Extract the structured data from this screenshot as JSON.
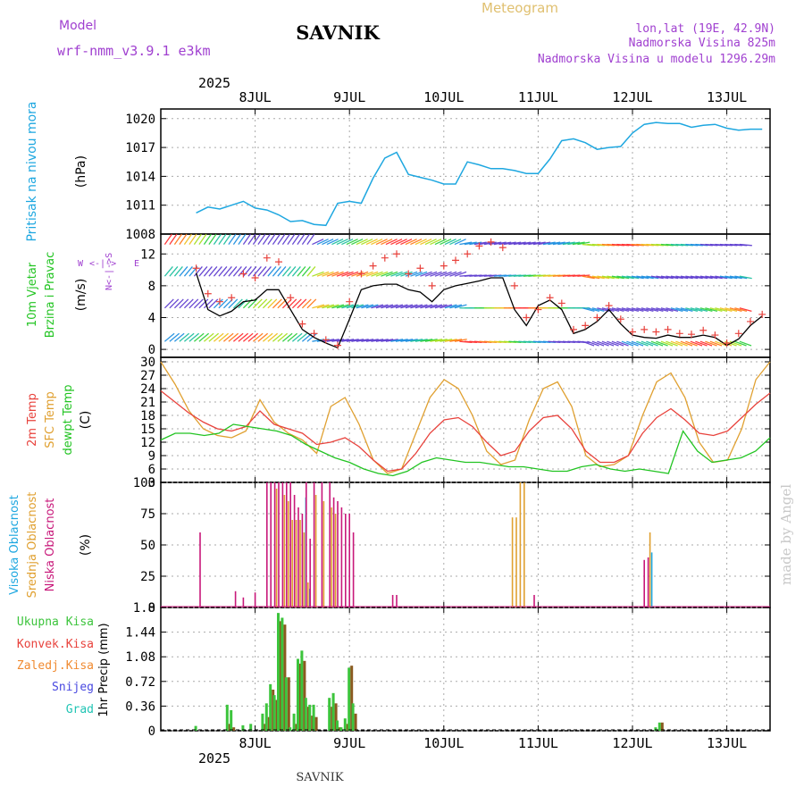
{
  "header": {
    "meteogram_label": "Meteogram",
    "model_label": "Model",
    "model_name": "wrf-nmm_v3.9.1 e3km",
    "station": "SAVNIK",
    "lonlat": "lon,lat (19E, 42.9N)",
    "elevation": "Nadmorska Visina 825m",
    "model_elevation": "Nadmorska Visina u modelu 1296.29m",
    "year": "2025",
    "credit": "made by Angel",
    "footer_station": "SAVNIK"
  },
  "colors": {
    "pressure": "#1ea7e0",
    "wind": "#000000",
    "gust": "#e8423c",
    "temp2m": "#e8423c",
    "sfc": "#e0a030",
    "dewpoint": "#22c422",
    "high_cloud": "#1ea7e0",
    "mid_cloud": "#e0a030",
    "low_cloud": "#c8187a",
    "precip_total": "#3cc43c",
    "precip_conv": "#e8423c",
    "precip_frz": "#f08a30",
    "snow": "#4848e0",
    "hail": "#20c4b4",
    "purple_label": "#a040d0"
  },
  "chart_data": [
    {
      "type": "line",
      "panel": "pressure",
      "ylabel": "Pritisak na nivou mora",
      "yunit": "(hPa)",
      "ylim": [
        1008,
        1021
      ],
      "yticks": [
        1008,
        1011,
        1014,
        1017,
        1020
      ],
      "xticks_top": [
        "8JUL",
        "9JUL",
        "10JUL",
        "11JUL",
        "12JUL",
        "13JUL"
      ],
      "x_hours": [
        0,
        3,
        6,
        9,
        12,
        15,
        18,
        21,
        24,
        27,
        30,
        33,
        36,
        39,
        42,
        45,
        48,
        51,
        54,
        57,
        60,
        63,
        66,
        69,
        72,
        75,
        78,
        81,
        84,
        87,
        90,
        93,
        96,
        99,
        102,
        105,
        108,
        111,
        114,
        117,
        120,
        123,
        126,
        129,
        132,
        135,
        138,
        141,
        144
      ],
      "series": [
        {
          "name": "Pritisak na nivou mora",
          "values": [
            1010.2,
            1010.8,
            1010.6,
            1011.0,
            1011.4,
            1010.7,
            1010.5,
            1010.0,
            1009.3,
            1009.4,
            1009.0,
            1008.9,
            1011.2,
            1011.4,
            1011.2,
            1013.8,
            1015.9,
            1016.5,
            1014.2,
            1013.9,
            1013.6,
            1013.2,
            1013.2,
            1015.5,
            1015.2,
            1014.8,
            1014.8,
            1014.6,
            1014.3,
            1014.3,
            1015.8,
            1017.7,
            1017.9,
            1017.5,
            1016.8,
            1017.0,
            1017.1,
            1018.5,
            1019.4,
            1019.6,
            1019.5,
            1019.5,
            1019.1,
            1019.3,
            1019.4,
            1019.0,
            1018.8,
            1018.9,
            1018.9
          ]
        }
      ]
    },
    {
      "type": "line",
      "panel": "wind",
      "ylabel": "10m Vjetar Brzina i Pravac",
      "yunit": "(m/s)",
      "compass": "N <-|-> S, W <-|-> E",
      "ylim": [
        -1,
        14.5
      ],
      "yticks": [
        0,
        4,
        8,
        12
      ],
      "x_hours": [
        0,
        3,
        6,
        9,
        12,
        15,
        18,
        21,
        24,
        27,
        30,
        33,
        36,
        39,
        42,
        45,
        48,
        51,
        54,
        57,
        60,
        63,
        66,
        69,
        72,
        75,
        78,
        81,
        84,
        87,
        90,
        93,
        96,
        99,
        102,
        105,
        108,
        111,
        114,
        117,
        120,
        123,
        126,
        129,
        132,
        135,
        138,
        141,
        144
      ],
      "series": [
        {
          "name": "Brzina vjetra",
          "values": [
            9.6,
            5.0,
            4.2,
            4.8,
            6.0,
            6.2,
            7.5,
            7.5,
            5.0,
            2.5,
            1.5,
            0.8,
            0.2,
            3.8,
            7.5,
            8.0,
            8.2,
            8.2,
            7.5,
            7.2,
            6.0,
            7.5,
            8.0,
            8.3,
            8.6,
            9.0,
            9.0,
            5.0,
            3.0,
            5.5,
            6.2,
            5.0,
            2.0,
            2.5,
            3.5,
            5.0,
            3.2,
            1.8,
            1.5,
            1.4,
            1.8,
            1.5,
            1.5,
            1.8,
            1.5,
            0.5,
            1.3,
            3.0,
            4.2
          ]
        },
        {
          "name": "Udari vjetra",
          "values": [
            10.2,
            7.0,
            6.0,
            6.5,
            9.5,
            9.0,
            11.5,
            11.0,
            6.5,
            3.2,
            2.0,
            1.2,
            0.5,
            6.0,
            9.5,
            10.5,
            11.5,
            12.0,
            9.5,
            10.2,
            8.0,
            10.5,
            11.2,
            12.0,
            13.0,
            13.5,
            12.8,
            8.0,
            4.0,
            5.0,
            6.5,
            5.8,
            2.5,
            3.0,
            4.0,
            5.5,
            3.8,
            2.2,
            2.5,
            2.2,
            2.5,
            2.0,
            1.9,
            2.4,
            1.8,
            0.8,
            2.0,
            3.5,
            4.4
          ]
        }
      ]
    },
    {
      "type": "line",
      "panel": "temperature",
      "ylabel": "2m Temp / SFC Temp / dewpt Temp",
      "yunit": "(C)",
      "ylim": [
        3,
        31
      ],
      "yticks": [
        3,
        6,
        9,
        12,
        15,
        18,
        21,
        24,
        27,
        30
      ],
      "x_hours": [
        0,
        3,
        6,
        9,
        12,
        15,
        18,
        21,
        24,
        27,
        30,
        33,
        36,
        39,
        42,
        45,
        48,
        51,
        54,
        57,
        60,
        63,
        66,
        69,
        72,
        75,
        78,
        81,
        84,
        87,
        90,
        93,
        96,
        99,
        102,
        105,
        108,
        111,
        114,
        117,
        120,
        123,
        126,
        129,
        132,
        135,
        138,
        141,
        144
      ],
      "series": [
        {
          "name": "2m Temp",
          "values": [
            23.5,
            21.0,
            18.5,
            16.5,
            15.0,
            14.5,
            15.5,
            19.0,
            16.0,
            15.0,
            14.0,
            11.5,
            12.0,
            13.0,
            11.0,
            8.0,
            5.5,
            6.0,
            9.5,
            14.0,
            17.0,
            17.5,
            15.5,
            12.0,
            9.0,
            10.0,
            14.5,
            17.5,
            18.0,
            15.0,
            10.0,
            7.5,
            7.5,
            9.0,
            14.0,
            17.5,
            19.5,
            17.0,
            14.0,
            13.5,
            14.5,
            17.5,
            20.5,
            23.0
          ]
        },
        {
          "name": "SFC Temp",
          "values": [
            30.0,
            25.0,
            19.0,
            15.0,
            13.5,
            13.0,
            14.5,
            21.5,
            16.5,
            14.0,
            12.5,
            9.5,
            20.0,
            22.0,
            16.0,
            8.0,
            5.0,
            6.0,
            14.0,
            22.0,
            26.0,
            24.0,
            18.0,
            10.0,
            7.0,
            8.0,
            17.0,
            24.0,
            25.5,
            20.0,
            9.0,
            6.5,
            7.0,
            9.0,
            18.0,
            25.5,
            27.5,
            22.0,
            12.0,
            7.5,
            8.0,
            15.0,
            26.0,
            30.0
          ]
        },
        {
          "name": "dewpt Temp",
          "values": [
            12.5,
            14.0,
            14.0,
            13.5,
            14.0,
            16.0,
            15.5,
            15.0,
            14.5,
            13.5,
            11.5,
            10.0,
            8.5,
            7.5,
            6.0,
            5.0,
            4.5,
            5.5,
            7.5,
            8.5,
            8.0,
            7.5,
            7.5,
            7.0,
            6.5,
            6.5,
            6.0,
            5.5,
            5.5,
            6.5,
            7.0,
            6.0,
            5.5,
            6.0,
            5.5,
            5.0,
            14.5,
            10.0,
            7.5,
            8.0,
            8.5,
            10.0,
            13.0
          ]
        }
      ]
    },
    {
      "type": "bar",
      "panel": "clouds",
      "ylabel": "Visoka Oblacnost / Srednja Oblacnost / Niska Oblacnost",
      "yunit": "(%)",
      "ylim": [
        0,
        100
      ],
      "yticks": [
        0,
        25,
        50,
        75,
        100
      ],
      "x_hours": [
        1,
        10,
        12,
        15,
        18,
        19,
        20,
        21,
        22,
        23,
        24,
        25,
        26,
        27,
        28,
        29,
        30,
        32,
        34,
        35,
        36,
        37,
        38,
        39,
        40,
        50,
        51,
        80,
        81,
        82,
        83,
        86,
        114,
        115
      ],
      "series": [
        {
          "name": "Niska Oblacnost",
          "values": [
            60,
            13,
            8,
            12,
            100,
            100,
            100,
            100,
            100,
            100,
            100,
            90,
            80,
            75,
            100,
            55,
            100,
            100,
            100,
            88,
            85,
            80,
            75,
            75,
            60,
            10,
            10,
            0,
            0,
            0,
            0,
            10,
            38,
            40
          ]
        },
        {
          "name": "Srednja Oblacnost",
          "values": [
            0,
            0,
            0,
            0,
            0,
            0,
            95,
            0,
            90,
            85,
            70,
            70,
            70,
            60,
            20,
            0,
            90,
            85,
            80,
            75,
            0,
            0,
            0,
            0,
            0,
            0,
            0,
            72,
            72,
            100,
            100,
            0,
            0,
            60
          ]
        },
        {
          "name": "Visoka Oblacnost",
          "values": [
            0,
            0,
            0,
            0,
            0,
            0,
            0,
            0,
            0,
            0,
            0,
            0,
            0,
            88,
            15,
            0,
            0,
            0,
            0,
            0,
            0,
            0,
            0,
            0,
            0,
            0,
            0,
            0,
            0,
            0,
            0,
            0,
            0,
            44
          ]
        }
      ]
    },
    {
      "type": "bar",
      "panel": "precip",
      "ylabel": "1hr Precip",
      "yunit": "(mm)",
      "legend": [
        "Ukupna Kisa",
        "Konvek.Kisa",
        "Zaledj.Kisa",
        "Snijeg",
        "Grad"
      ],
      "ylim": [
        0,
        1.8
      ],
      "yticks": [
        0,
        0.36,
        0.72,
        1.08,
        1.44,
        1.8
      ],
      "xticks_bottom": [
        "8JUL",
        "9JUL",
        "10JUL",
        "11JUL",
        "12JUL",
        "13JUL"
      ],
      "x_hours": [
        0,
        8,
        9,
        12,
        14,
        17,
        18,
        19,
        20,
        21,
        22,
        23,
        24,
        25,
        26,
        27,
        28,
        29,
        30,
        34,
        35,
        36,
        37,
        38,
        39,
        40,
        117,
        118
      ],
      "series": [
        {
          "name": "Ukupna Kisa",
          "values": [
            0.07,
            0.38,
            0.3,
            0.08,
            0.1,
            0.25,
            0.4,
            0.68,
            0.52,
            1.72,
            1.65,
            0.78,
            0.05,
            0.25,
            1.05,
            1.17,
            0.48,
            0.38,
            0.38,
            0.48,
            0.55,
            0.15,
            0.05,
            0.18,
            0.92,
            0.4,
            0.05,
            0.12
          ]
        },
        {
          "name": "Konvek.Kisa",
          "values": [
            0,
            0.1,
            0.05,
            0,
            0,
            0.1,
            0.2,
            0.6,
            0.45,
            1.6,
            1.55,
            0.78,
            0,
            0.1,
            0.98,
            1.02,
            0.35,
            0.22,
            0.2,
            0.35,
            0.4,
            0.05,
            0,
            0.1,
            0.95,
            0.25,
            0,
            0.12
          ]
        }
      ]
    }
  ]
}
